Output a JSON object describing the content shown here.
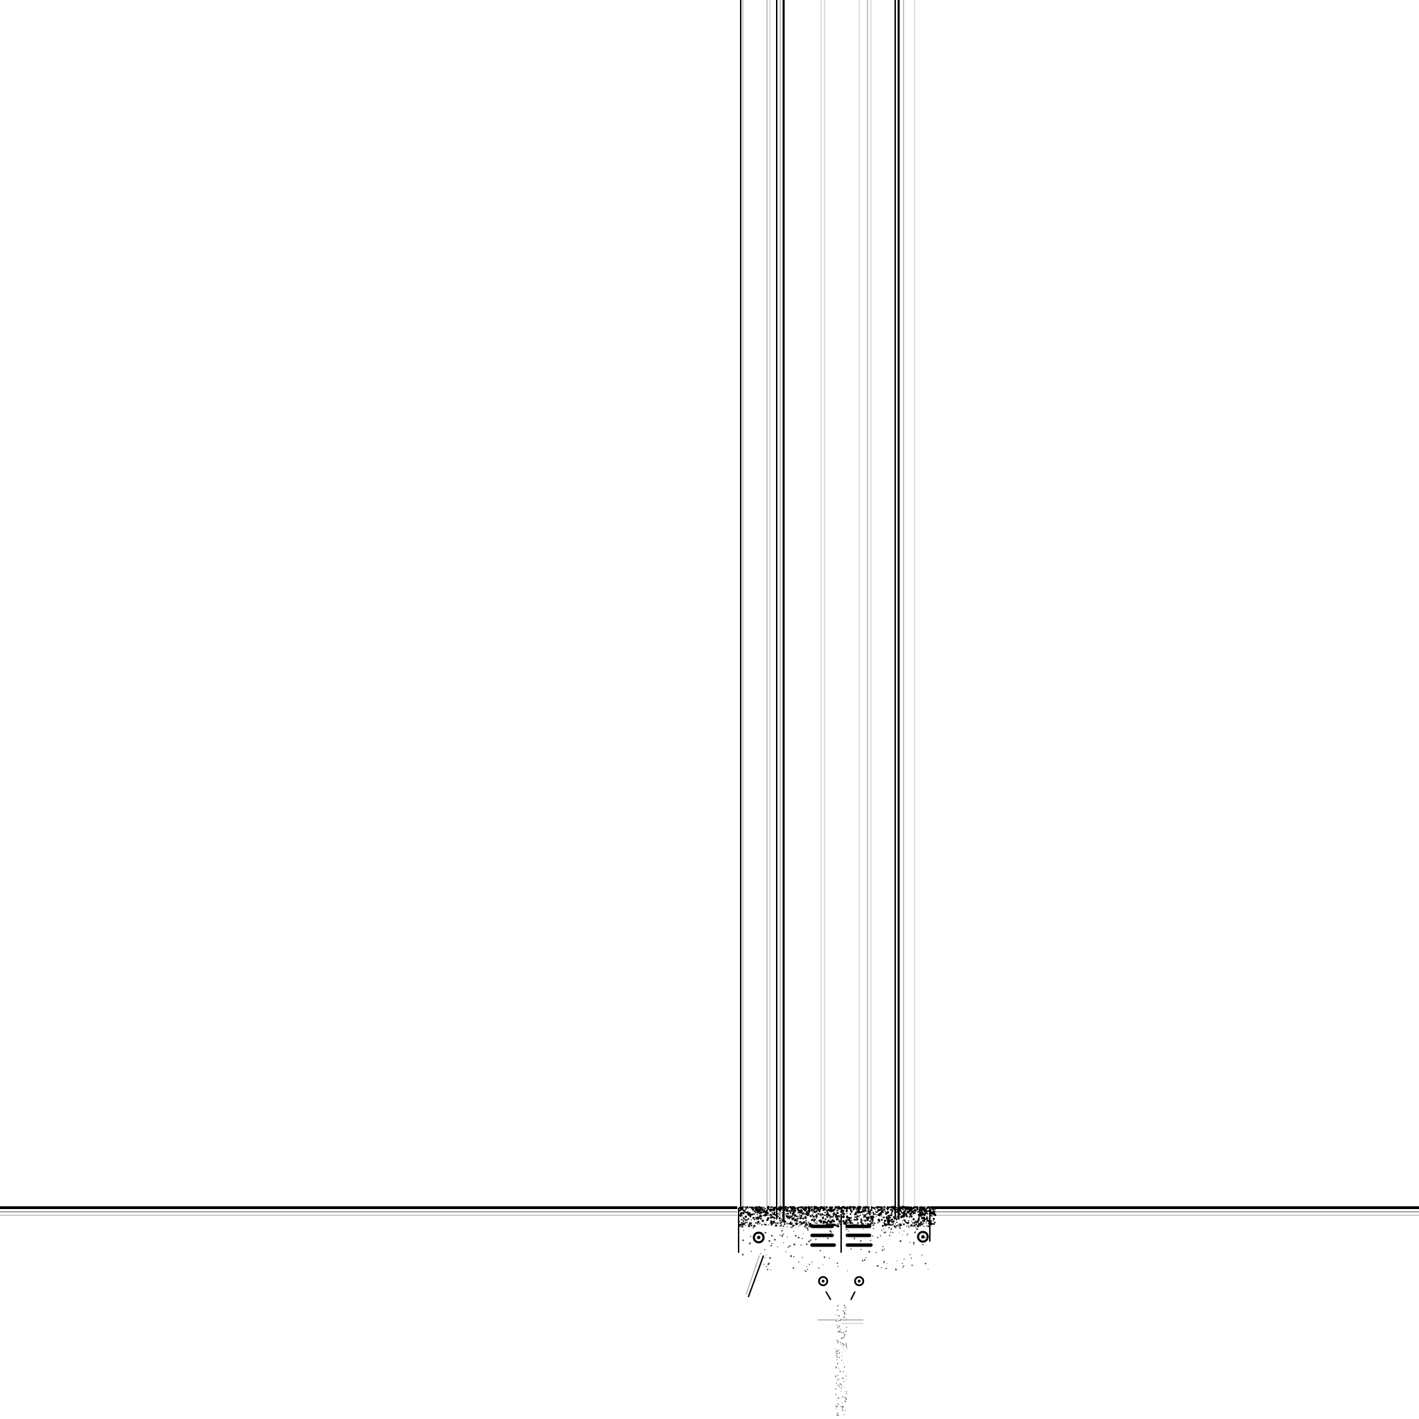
{
  "canvas": {
    "background": "#ffffff",
    "ink": "#000000",
    "grey_ink": "#8a8a8a",
    "light_ink": "#bdbdbd"
  },
  "scene": {
    "vertical_pillar_icon": "vertical-line-bundle",
    "horizontal_rail_icon": "horizontal-line-bundle",
    "junction_plate_icon": "speckled-junction-plate",
    "bolt_icon": "circle-bolt",
    "slot_icon": "dash-slot"
  }
}
